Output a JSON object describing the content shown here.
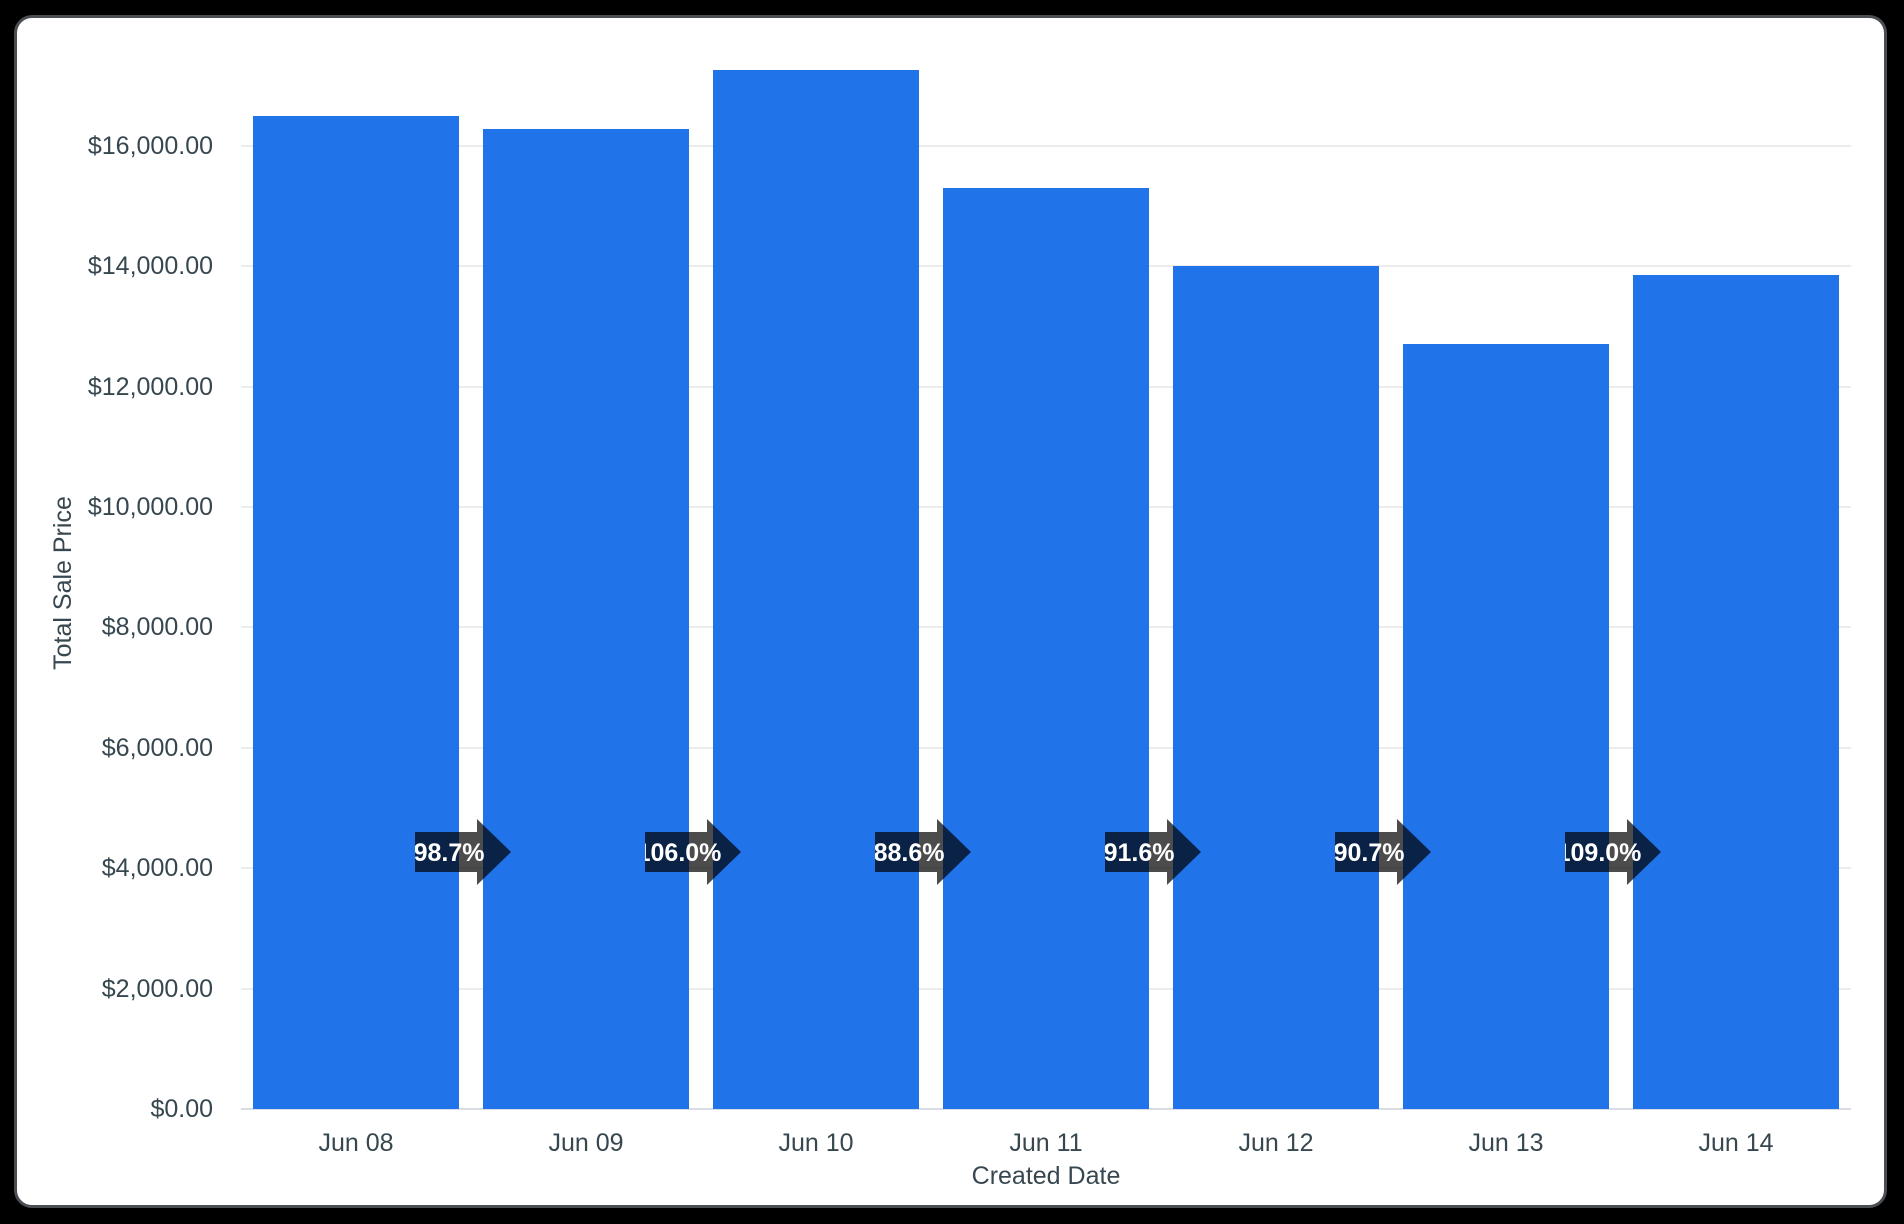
{
  "chart": {
    "y_axis_title": "Total Sale Price",
    "x_axis_title": "Created Date"
  },
  "chart_data": {
    "type": "bar",
    "categories": [
      "Jun 08",
      "Jun 09",
      "Jun 10",
      "Jun 11",
      "Jun 12",
      "Jun 13",
      "Jun 14"
    ],
    "values": [
      16500,
      16286,
      17263,
      15295,
      14010,
      12707,
      13851
    ],
    "percent_change_labels": [
      "98.7%",
      "106.0%",
      "88.6%",
      "91.6%",
      "90.7%",
      "109.0%"
    ],
    "title": "",
    "xlabel": "Created Date",
    "ylabel": "Total Sale Price",
    "ylim": [
      0,
      17400
    ],
    "y_tick_values": [
      0,
      2000,
      4000,
      6000,
      8000,
      10000,
      12000,
      14000,
      16000
    ],
    "y_tick_labels": [
      "$0.00",
      "$2,000.00",
      "$4,000.00",
      "$6,000.00",
      "$8,000.00",
      "$10,000.00",
      "$12,000.00",
      "$14,000.00",
      "$16,000.00"
    ],
    "grid": true,
    "legend": "none"
  },
  "style": {
    "bar_color": "#2073e8",
    "axis_label_color": "#37474f",
    "gridline_color": "#ececec",
    "baseline_color": "#d8dce4",
    "arrow_fill": "rgba(0,0,0,0.70)",
    "arrow_text_color": "#ffffff",
    "card_background": "#ffffff",
    "card_border_color": "#4a4e52",
    "page_background": "#000000"
  }
}
